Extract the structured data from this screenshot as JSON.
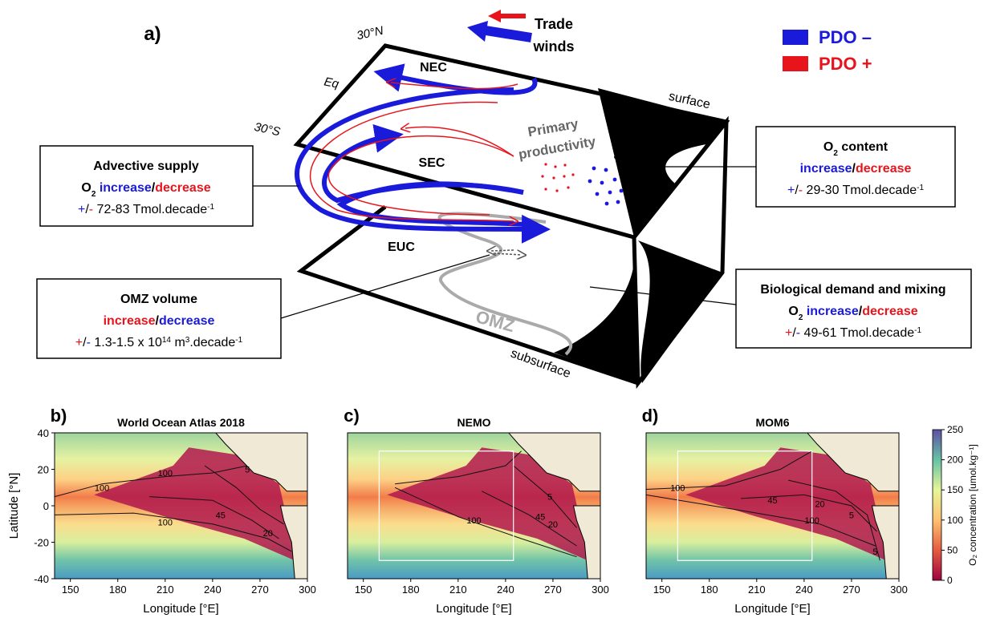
{
  "panel_a": {
    "label": "a)",
    "trade_winds": [
      "Trade",
      "winds"
    ],
    "legend": [
      {
        "label": "PDO –",
        "color": "#1a1adb"
      },
      {
        "label": "PDO +",
        "color": "#e8141c"
      }
    ],
    "latitudes": [
      "30°N",
      "Eq",
      "30°S"
    ],
    "currents": [
      "NEC",
      "SEC",
      "EUC"
    ],
    "layers": [
      "surface",
      "subsurface"
    ],
    "productivity": [
      "Primary",
      "productivity"
    ],
    "omz": "OMZ",
    "boxes": [
      {
        "lines": [
          [
            {
              "text": "Advective supply"
            }
          ],
          [
            {
              "text": "O"
            },
            {
              "text": "2",
              "sub": true
            },
            {
              "text": " increase",
              "color": "#1a1adb"
            },
            {
              "text": "/"
            },
            {
              "text": "decrease",
              "color": "#e8141c"
            }
          ],
          [
            {
              "text": "+",
              "color": "#1a1adb"
            },
            {
              "text": "/"
            },
            {
              "text": "-",
              "color": "#e8141c"
            },
            {
              "text": " 72-83 Tmol.decade"
            },
            {
              "text": "-1",
              "sup": true
            }
          ]
        ]
      },
      {
        "lines": [
          [
            {
              "text": "O"
            },
            {
              "text": "2",
              "sub": true
            },
            {
              "text": " content"
            }
          ],
          [
            {
              "text": "increase",
              "color": "#1a1adb"
            },
            {
              "text": "/"
            },
            {
              "text": "decrease",
              "color": "#e8141c"
            }
          ],
          [
            {
              "text": "+",
              "color": "#1a1adb"
            },
            {
              "text": "/"
            },
            {
              "text": "-",
              "color": "#e8141c"
            },
            {
              "text": " 29-30 Tmol.decade"
            },
            {
              "text": "-1",
              "sup": true
            }
          ]
        ]
      },
      {
        "lines": [
          [
            {
              "text": "OMZ volume"
            }
          ],
          [
            {
              "text": "increase",
              "color": "#e8141c"
            },
            {
              "text": "/"
            },
            {
              "text": "decrease",
              "color": "#1a1adb"
            }
          ],
          [
            {
              "text": "+",
              "color": "#e8141c"
            },
            {
              "text": "/"
            },
            {
              "text": "-",
              "color": "#1a1adb"
            },
            {
              "text": " 1.3-1.5 x 10"
            },
            {
              "text": "14",
              "sup": true
            },
            {
              "text": " m"
            },
            {
              "text": "3",
              "sup": true
            },
            {
              "text": ".decade"
            },
            {
              "text": "-1",
              "sup": true
            }
          ]
        ]
      },
      {
        "lines": [
          [
            {
              "text": "Biological demand and mixing"
            }
          ],
          [
            {
              "text": "O"
            },
            {
              "text": "2",
              "sub": true
            },
            {
              "text": " increase",
              "color": "#1a1adb"
            },
            {
              "text": "/"
            },
            {
              "text": "decrease",
              "color": "#e8141c"
            }
          ],
          [
            {
              "text": "+",
              "color": "#e8141c"
            },
            {
              "text": "/"
            },
            {
              "text": "-",
              "color": "#1a1adb"
            },
            {
              "text": " 49-61 Tmol.decade"
            },
            {
              "text": "-1",
              "sup": true
            }
          ]
        ]
      }
    ]
  },
  "maps": [
    {
      "label": "b)",
      "title": "World Ocean Atlas 2018",
      "xlabel": "Longitude [°E]",
      "ylabel": "Latitude [°N]",
      "yticks": [
        -40,
        -20,
        0,
        20,
        40
      ],
      "contour_labels": [
        100,
        100,
        5,
        100,
        45,
        20
      ]
    },
    {
      "label": "c)",
      "title": "NEMO",
      "xlabel": "Longitude [°E]",
      "contour_labels": [
        5,
        20,
        45,
        100
      ]
    },
    {
      "label": "d)",
      "title": "MOM6",
      "xlabel": "Longitude [°E]",
      "contour_labels": [
        100,
        45,
        20,
        5,
        100,
        5
      ]
    }
  ],
  "map_axes": {
    "xlim": [
      140,
      300
    ],
    "ylim": [
      -40,
      40
    ],
    "xticks": [
      150,
      180,
      210,
      240,
      270,
      300
    ]
  },
  "colorbar": {
    "label": "O₂ concentration [umol.kg⁻¹]",
    "lim": [
      0,
      250
    ],
    "ticks": [
      0,
      50,
      100,
      150,
      200,
      250
    ]
  }
}
